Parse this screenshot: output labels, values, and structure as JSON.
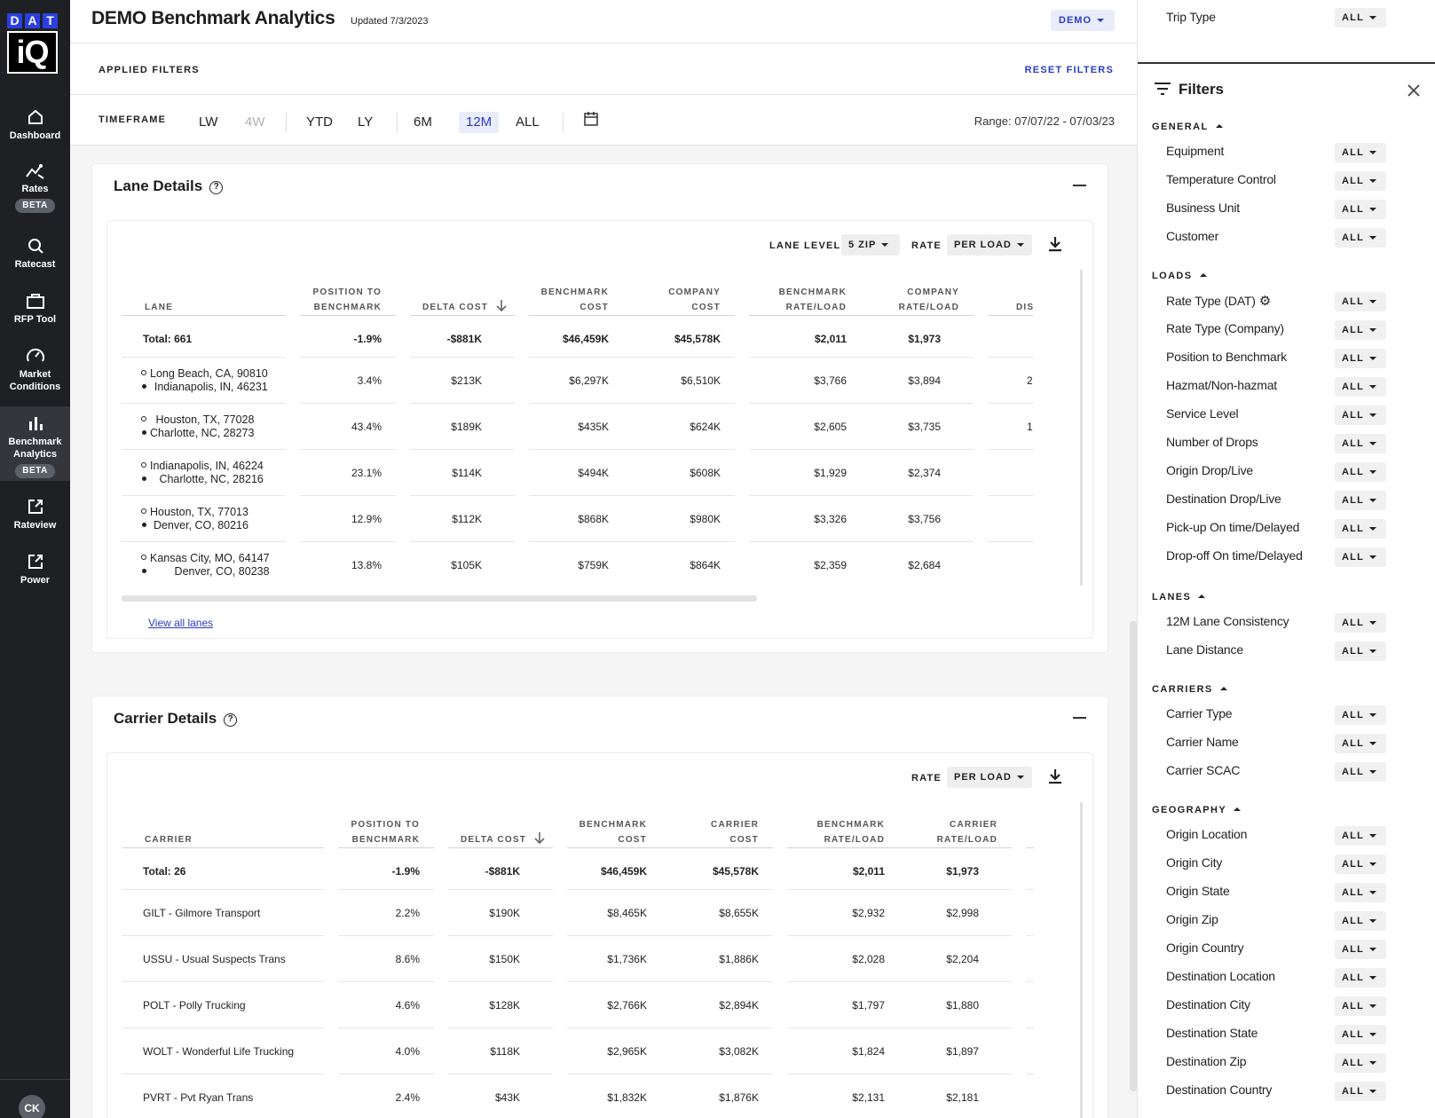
{
  "nav": {
    "logo_top": [
      "D",
      "A",
      "T"
    ],
    "logo_bottom": "iQ",
    "items": [
      {
        "label": "Dashboard",
        "icon": "home-icon"
      },
      {
        "label": "Rates",
        "icon": "rates-chart-icon",
        "badge": "BETA"
      },
      {
        "label": "Ratecast",
        "icon": "search-icon"
      },
      {
        "label": "RFP Tool",
        "icon": "briefcase-icon"
      },
      {
        "label": "Market Conditions",
        "icon": "gauge-icon"
      },
      {
        "label": "Benchmark Analytics",
        "icon": "bar-chart-icon",
        "badge": "BETA"
      },
      {
        "label": "Rateview",
        "icon": "external-link-icon"
      },
      {
        "label": "Power",
        "icon": "external-link-icon"
      }
    ],
    "avatar": "CK"
  },
  "header": {
    "title": "DEMO Benchmark Analytics",
    "updated": "Updated 7/3/2023",
    "account": "DEMO"
  },
  "applied_filters": {
    "label": "APPLIED FILTERS",
    "reset": "RESET FILTERS"
  },
  "timeframe": {
    "label": "TIMEFRAME",
    "options": [
      "LW",
      "4W",
      "YTD",
      "LY",
      "6M",
      "12M",
      "ALL"
    ],
    "selected": "12M",
    "range": "Range: 07/07/22 - 07/03/23"
  },
  "lane_details": {
    "title": "Lane Details",
    "lane_level_label": "LANE LEVEL",
    "lane_level": "5 ZIP",
    "rate_label": "RATE",
    "rate": "PER LOAD",
    "columns": {
      "lane": "LANE",
      "position_1": "POSITION TO",
      "position_2": "BENCHMARK",
      "delta": "DELTA COST",
      "bench_cost_1": "BENCHMARK",
      "bench_cost_2": "COST",
      "comp_cost_1": "COMPANY",
      "comp_cost_2": "COST",
      "bench_rate_1": "BENCHMARK",
      "bench_rate_2": "RATE/LOAD",
      "comp_rate_1": "COMPANY",
      "comp_rate_2": "RATE/LOAD",
      "dis": "DIS"
    },
    "total": {
      "lane": "Total: 661",
      "position": "-1.9%",
      "delta": "-$881K",
      "bench_cost": "$46,459K",
      "comp_cost": "$45,578K",
      "bench_rate": "$2,011",
      "comp_rate": "$1,973"
    },
    "rows": [
      {
        "origin": "Long Beach, CA, 90810",
        "dest": "Indianapolis, IN, 46231",
        "position": "3.4%",
        "delta": "$213K",
        "bench_cost": "$6,297K",
        "comp_cost": "$6,510K",
        "bench_rate": "$3,766",
        "comp_rate": "$3,894",
        "dis": "2"
      },
      {
        "origin": "Houston, TX, 77028",
        "dest": "Charlotte, NC, 28273",
        "position": "43.4%",
        "delta": "$189K",
        "bench_cost": "$435K",
        "comp_cost": "$624K",
        "bench_rate": "$2,605",
        "comp_rate": "$3,735",
        "dis": "1"
      },
      {
        "origin": "Indianapolis, IN, 46224",
        "dest": "Charlotte, NC, 28216",
        "position": "23.1%",
        "delta": "$114K",
        "bench_cost": "$494K",
        "comp_cost": "$608K",
        "bench_rate": "$1,929",
        "comp_rate": "$2,374",
        "dis": ""
      },
      {
        "origin": "Houston, TX, 77013",
        "dest": "Denver, CO, 80216",
        "position": "12.9%",
        "delta": "$112K",
        "bench_cost": "$868K",
        "comp_cost": "$980K",
        "bench_rate": "$3,326",
        "comp_rate": "$3,756",
        "dis": ""
      },
      {
        "origin": "Kansas City, MO, 64147",
        "dest": "Denver, CO, 80238",
        "position": "13.8%",
        "delta": "$105K",
        "bench_cost": "$759K",
        "comp_cost": "$864K",
        "bench_rate": "$2,359",
        "comp_rate": "$2,684",
        "dis": ""
      }
    ],
    "view_all": "View all lanes"
  },
  "carrier_details": {
    "title": "Carrier Details",
    "rate_label": "RATE",
    "rate": "PER LOAD",
    "columns": {
      "carrier": "CARRIER",
      "position_1": "POSITION TO",
      "position_2": "BENCHMARK",
      "delta": "DELTA COST",
      "bench_cost_1": "BENCHMARK",
      "bench_cost_2": "COST",
      "car_cost_1": "CARRIER",
      "car_cost_2": "COST",
      "bench_rate_1": "BENCHMARK",
      "bench_rate_2": "RATE/LOAD",
      "car_rate_1": "CARRIER",
      "car_rate_2": "RATE/LOAD"
    },
    "total": {
      "carrier": "Total: 26",
      "position": "-1.9%",
      "delta": "-$881K",
      "bench_cost": "$46,459K",
      "car_cost": "$45,578K",
      "bench_rate": "$2,011",
      "car_rate": "$1,973"
    },
    "rows": [
      {
        "carrier": "GILT - Gilmore Transport",
        "position": "2.2%",
        "delta": "$190K",
        "bench_cost": "$8,465K",
        "car_cost": "$8,655K",
        "bench_rate": "$2,932",
        "car_rate": "$2,998"
      },
      {
        "carrier": "USSU - Usual Suspects Trans",
        "position": "8.6%",
        "delta": "$150K",
        "bench_cost": "$1,736K",
        "car_cost": "$1,886K",
        "bench_rate": "$2,028",
        "car_rate": "$2,204"
      },
      {
        "carrier": "POLT - Polly Trucking",
        "position": "4.6%",
        "delta": "$128K",
        "bench_cost": "$2,766K",
        "car_cost": "$2,894K",
        "bench_rate": "$1,797",
        "car_rate": "$1,880"
      },
      {
        "carrier": "WOLT - Wonderful Life Trucking",
        "position": "4.0%",
        "delta": "$118K",
        "bench_cost": "$2,965K",
        "car_cost": "$3,082K",
        "bench_rate": "$1,824",
        "car_rate": "$1,897"
      },
      {
        "carrier": "PVRT - Pvt Ryan Trans",
        "position": "2.4%",
        "delta": "$43K",
        "bench_cost": "$1,832K",
        "car_cost": "$1,876K",
        "bench_rate": "$2,131",
        "car_rate": "$2,181"
      }
    ]
  },
  "filters_panel": {
    "title": "Filters",
    "all": "ALL",
    "top_item": "Trip Type",
    "sections": [
      {
        "name": "GENERAL",
        "items": [
          "Equipment",
          "Temperature Control",
          "Business Unit",
          "Customer"
        ]
      },
      {
        "name": "LOADS",
        "items": [
          "Rate Type (DAT)",
          "Rate Type (Company)",
          "Position to Benchmark",
          "Hazmat/Non-hazmat",
          "Service Level",
          "Number of Drops",
          "Origin Drop/Live",
          "Destination Drop/Live",
          "Pick-up On time/Delayed",
          "Drop-off On time/Delayed"
        ]
      },
      {
        "name": "LANES",
        "items": [
          "12M Lane Consistency",
          "Lane Distance"
        ]
      },
      {
        "name": "CARRIERS",
        "items": [
          "Carrier Type",
          "Carrier Name",
          "Carrier SCAC"
        ]
      },
      {
        "name": "GEOGRAPHY",
        "items": [
          "Origin Location",
          "Origin City",
          "Origin State",
          "Origin Zip",
          "Origin Country",
          "Destination Location",
          "Destination City",
          "Destination State",
          "Destination Zip",
          "Destination Country"
        ]
      }
    ]
  }
}
